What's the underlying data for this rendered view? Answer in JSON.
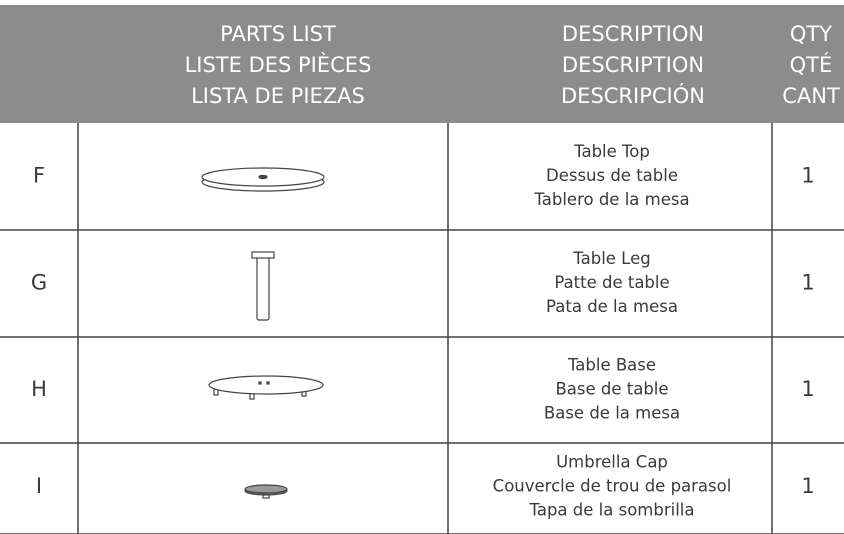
{
  "header": {
    "parts_list": [
      "PARTS LIST",
      "LISTE DES PIÈCES",
      "LISTA  DE  PIEZAS"
    ],
    "description": [
      "DESCRIPTION",
      "DESCRIPTION",
      "DESCRIPCIÓN"
    ],
    "qty": [
      "QTY",
      "QTÉ",
      "CANT"
    ]
  },
  "rows": [
    {
      "letter": "F",
      "description": [
        "Table Top",
        "Dessus de table",
        "Tablero de la mesa"
      ],
      "qty": 1
    },
    {
      "letter": "G",
      "description": [
        "Table Leg",
        "Patte de table",
        "Pata de la mesa"
      ],
      "qty": 1
    },
    {
      "letter": "H",
      "description": [
        "Table Base",
        "Base de table",
        "Base de la mesa"
      ],
      "qty": 1
    },
    {
      "letter": "I",
      "description": [
        "Umbrella Cap",
        "Couvercle de trou de parasol",
        "Tapa de la sombrilla"
      ],
      "qty": 1
    }
  ]
}
